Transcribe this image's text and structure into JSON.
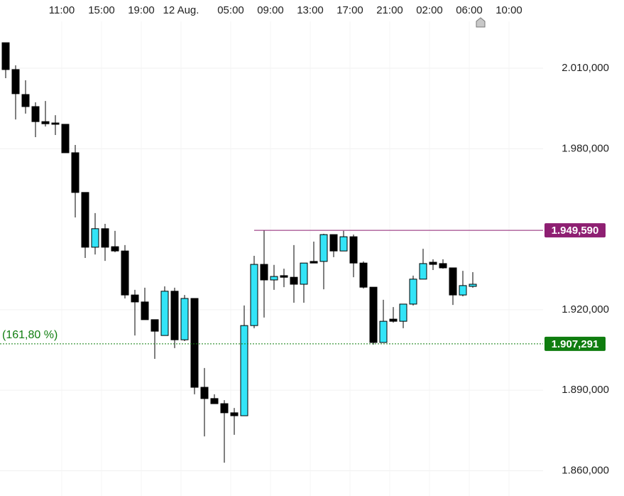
{
  "chart_data": {
    "type": "candlestick",
    "categories": [
      null,
      null,
      null,
      null,
      null,
      "11:00",
      null,
      null,
      null,
      "15:00",
      null,
      null,
      null,
      "19:00",
      null,
      null,
      null,
      "12 Aug.",
      null,
      null,
      null,
      null,
      "05:00",
      null,
      null,
      null,
      "09:00",
      null,
      null,
      null,
      "13:00",
      null,
      null,
      null,
      "17:00",
      null,
      null,
      null,
      "21:00",
      null,
      null,
      null,
      "02:00",
      null,
      null,
      null,
      "06:00",
      null,
      null,
      null,
      "10:00"
    ],
    "open": [
      2019500,
      2009500,
      2000200,
      1995700,
      1990100,
      1989600,
      1989100,
      1978500,
      1963700,
      1943300,
      1950200,
      1943500,
      1941900,
      1925500,
      1922900,
      1916300,
      1910400,
      1926900,
      1908800,
      1924200,
      1891100,
      1886900,
      1885000,
      1881600,
      1880500,
      1914100,
      1936900,
      1931100,
      1932700,
      1932100,
      1929500,
      1938000,
      1938000,
      1948000,
      1941900,
      1947200,
      1937400,
      1928400,
      1907800,
      1916500,
      1915700,
      1922100,
      1931400,
      1937700,
      1937200,
      1935600,
      1925500,
      1928700,
      null,
      null,
      null
    ],
    "high": [
      2019500,
      2011100,
      2005500,
      1997300,
      1997800,
      1992500,
      1989100,
      1981400,
      1963700,
      1956000,
      1952000,
      1949400,
      1944100,
      1927400,
      1928200,
      1916300,
      1928700,
      1928200,
      1925500,
      1924200,
      1898300,
      1888500,
      1886300,
      1883400,
      1921600,
      1940100,
      1949600,
      1936700,
      1935300,
      1944100,
      1937400,
      1945400,
      1948300,
      1948000,
      1949400,
      1948000,
      1938000,
      1928400,
      1923700,
      1921000,
      1922100,
      1932700,
      1942700,
      1938800,
      1938800,
      1935600,
      1934500,
      1934000,
      null,
      null,
      null
    ],
    "low": [
      2006300,
      1990900,
      1993100,
      1984300,
      1988300,
      1985100,
      1978500,
      1954400,
      1939300,
      1940600,
      1938200,
      1941400,
      1924200,
      1910400,
      1916300,
      1901700,
      1910400,
      1905700,
      1908300,
      1888500,
      1872800,
      1885000,
      1863000,
      1873400,
      1880500,
      1913100,
      1917100,
      1927400,
      1928400,
      1922600,
      1922600,
      1937400,
      1927600,
      1939600,
      1941900,
      1932100,
      1927900,
      1907000,
      1907800,
      1915200,
      1913100,
      1921600,
      1931400,
      1934800,
      1935300,
      1921800,
      1925000,
      1928200,
      null,
      null,
      null
    ],
    "close": [
      2009500,
      2000500,
      1995700,
      1990100,
      1989300,
      1989100,
      1978500,
      1963700,
      1943300,
      1950200,
      1943300,
      1941900,
      1925500,
      1922900,
      1916300,
      1912000,
      1926900,
      1908800,
      1924200,
      1891100,
      1886900,
      1885000,
      1881600,
      1880500,
      1914100,
      1936900,
      1931100,
      1932400,
      1932100,
      1929500,
      1937400,
      1937400,
      1948000,
      1941900,
      1947200,
      1937400,
      1928400,
      1907800,
      1915700,
      1915700,
      1922100,
      1931400,
      1937200,
      1936900,
      1935600,
      1925500,
      1929000,
      1929500,
      null,
      null,
      null
    ],
    "up_color": "#33e4f7",
    "down_color": "#000000",
    "ylim": [
      1850590,
      2035420
    ],
    "yticks": [
      {
        "value": 1860000,
        "label": "1.860,000"
      },
      {
        "value": 1890000,
        "label": "1.890,000"
      },
      {
        "value": 1920000,
        "label": "1.920,000"
      },
      {
        "value": 1980000,
        "label": "1.980,000"
      },
      {
        "value": 2010000,
        "label": "2.010,000"
      }
    ],
    "grid": true,
    "levels": [
      {
        "value": 1949590,
        "label": "1.949,590",
        "color": "#8e1f72"
      },
      {
        "value": 1907291,
        "label": "1.907,291",
        "color": "#0f7d0f",
        "name": "(161,80 %)"
      }
    ]
  }
}
